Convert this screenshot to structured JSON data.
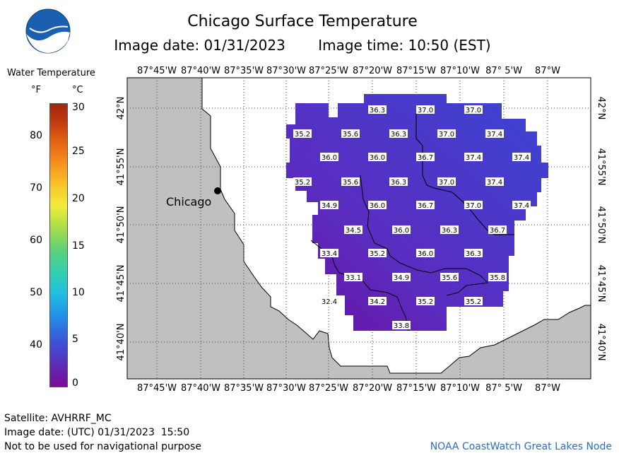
{
  "header": {
    "title": "Chicago Surface Temperature",
    "image_date": "Image date: 01/31/2023",
    "image_time": "Image time: 10:50 (EST)"
  },
  "legend": {
    "title": "Water Temperature",
    "unit_f": "°F",
    "unit_c": "°C",
    "f_ticks": [
      "80",
      "70",
      "60",
      "50",
      "40"
    ],
    "c_ticks": [
      "30",
      "25",
      "20",
      "15",
      "10",
      "5",
      "0"
    ]
  },
  "map": {
    "city_label": "Chicago",
    "lon_labels": [
      "87°45'W",
      "87°40'W",
      "87°35'W",
      "87°30'W",
      "87°25'W",
      "87°20'W",
      "87°15'W",
      "87°10'W",
      "87° 5'W",
      "87°W"
    ],
    "lat_labels": [
      "42°N",
      "41°55'N",
      "41°50'N",
      "41°45'N",
      "41°40'N"
    ],
    "colors": {
      "land": "#c0c0c0",
      "water_cold": "#6a1fa8",
      "water_warm": "#3a46d2"
    },
    "temperature_labels": [
      [
        "36.3",
        "37.0",
        "37.0"
      ],
      [
        "35.2",
        "35.6",
        "36.3",
        "37.0",
        "37.4"
      ],
      [
        "36.0",
        "36.0",
        "36.7",
        "37.4",
        "37.4"
      ],
      [
        "35.2",
        "35.6",
        "36.3",
        "37.0",
        "37.4"
      ],
      [
        "34.9",
        "36.0",
        "36.7",
        "37.0",
        "37.4"
      ],
      [
        "34.5",
        "36.0",
        "36.3",
        "36.7"
      ],
      [
        "33.4",
        "35.2",
        "36.0",
        "36.3"
      ],
      [
        "33.1",
        "34.9",
        "35.6",
        "35.8"
      ],
      [
        "32.4",
        "34.2",
        "35.2",
        "35.2"
      ],
      [
        "33.8"
      ]
    ]
  },
  "footer": {
    "satellite": "Satellite: AVHRRF_MC",
    "utc_date": "Image date: (UTC) 01/31/2023  15:50",
    "disclaimer": "Not to be used for navigational purpose",
    "credit": "NOAA CoastWatch Great Lakes Node"
  }
}
